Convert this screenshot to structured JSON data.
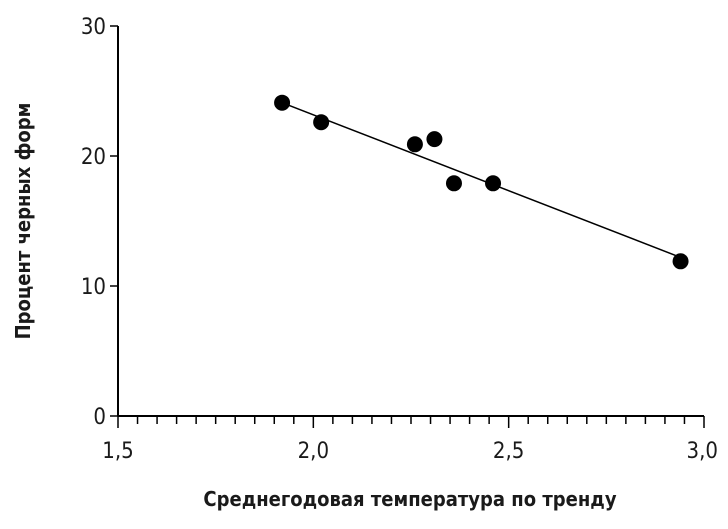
{
  "chart_data": {
    "type": "scatter",
    "xlabel": "Среднегодовая температура по тренду",
    "ylabel": "Процент черных форм",
    "xlim": [
      1.5,
      3.0
    ],
    "ylim": [
      0,
      30
    ],
    "x_ticks": [
      1.5,
      2.0,
      2.5,
      3.0
    ],
    "x_tick_labels": [
      "1,5",
      "2,0",
      "2,5",
      "3,0"
    ],
    "x_minor_step": 0.05,
    "y_ticks": [
      0,
      10,
      20,
      30
    ],
    "y_tick_labels": [
      "0",
      "10",
      "20",
      "30"
    ],
    "grid": false,
    "points": [
      {
        "x": 1.92,
        "y": 24.1
      },
      {
        "x": 2.02,
        "y": 22.6
      },
      {
        "x": 2.26,
        "y": 20.9
      },
      {
        "x": 2.31,
        "y": 21.3
      },
      {
        "x": 2.36,
        "y": 17.9
      },
      {
        "x": 2.46,
        "y": 17.9
      },
      {
        "x": 2.94,
        "y": 11.9
      }
    ],
    "trendline": {
      "x": [
        1.92,
        2.94
      ],
      "y": [
        24.1,
        12.2
      ]
    }
  }
}
